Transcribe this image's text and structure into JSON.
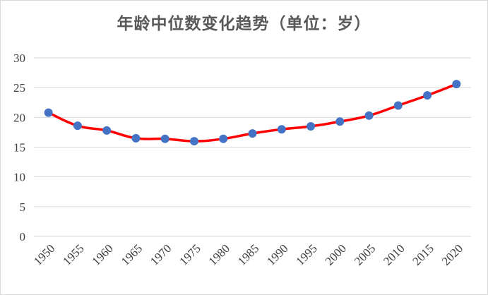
{
  "chart_data": {
    "type": "line",
    "title": "年龄中位数变化趋势（单位：岁）",
    "xlabel": "",
    "ylabel": "",
    "x": [
      "1950",
      "1955",
      "1960",
      "1965",
      "1970",
      "1975",
      "1980",
      "1985",
      "1990",
      "1995",
      "2000",
      "2005",
      "2010",
      "2015",
      "2020"
    ],
    "series": [
      {
        "values": [
          20.8,
          18.6,
          17.8,
          16.5,
          16.4,
          16.0,
          16.4,
          17.3,
          18.0,
          18.5,
          19.3,
          20.3,
          22.0,
          23.7,
          25.6
        ],
        "color": "#ff0000",
        "marker_color": "#4472c4"
      }
    ],
    "yticks": [
      "0",
      "5",
      "10",
      "15",
      "20",
      "25",
      "30"
    ],
    "ylim": [
      0,
      30
    ],
    "grid": true,
    "legend": "none"
  }
}
